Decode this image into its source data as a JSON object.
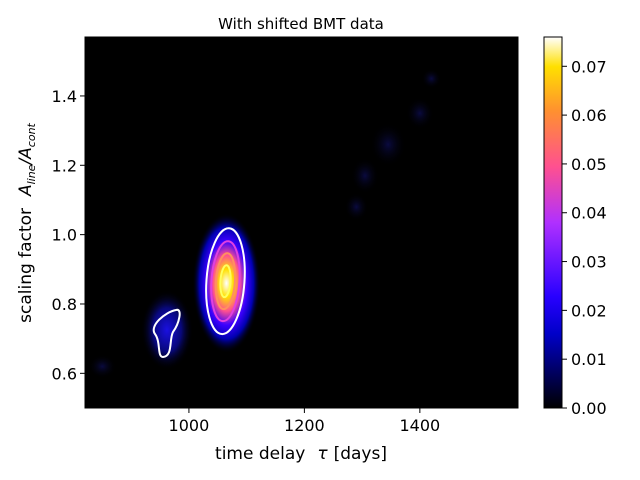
{
  "chart_data": {
    "type": "heatmap",
    "title": "With shifted BMT data",
    "xlabel_main": "time delay",
    "xlabel_sym": "τ",
    "xlabel_unit": "[days]",
    "ylabel_main": "scaling factor",
    "ylabel_A": "A",
    "ylabel_sub1": "line",
    "ylabel_slash": "/A",
    "ylabel_sub2": "cont",
    "xlim": [
      820,
      1570
    ],
    "ylim": [
      0.5,
      1.57
    ],
    "xticks": [
      1000,
      1200,
      1400
    ],
    "xtick_labels": [
      "1000",
      "1200",
      "1400"
    ],
    "yticks": [
      0.6,
      0.8,
      1.0,
      1.2,
      1.4
    ],
    "ytick_labels": [
      "0.6",
      "0.8",
      "1.0",
      "1.2",
      "1.4"
    ],
    "colorbar": {
      "colormap": "gnuplot2",
      "range": [
        0.0,
        0.076
      ],
      "ticks": [
        0.0,
        0.01,
        0.02,
        0.03,
        0.04,
        0.05,
        0.06,
        0.07
      ],
      "tick_labels": [
        "0.00",
        "0.01",
        "0.02",
        "0.03",
        "0.04",
        "0.05",
        "0.06",
        "0.07"
      ]
    },
    "peaks": [
      {
        "tau": 1065,
        "scale": 0.86,
        "value": 0.076
      },
      {
        "tau": 962,
        "scale": 0.725,
        "value": 0.012
      }
    ],
    "contour_levels": [
      0.01,
      0.03,
      0.05,
      0.07
    ],
    "contour_colors": [
      "#ffffff",
      "#e040e0",
      "#ff9060",
      "#ffff60"
    ]
  }
}
